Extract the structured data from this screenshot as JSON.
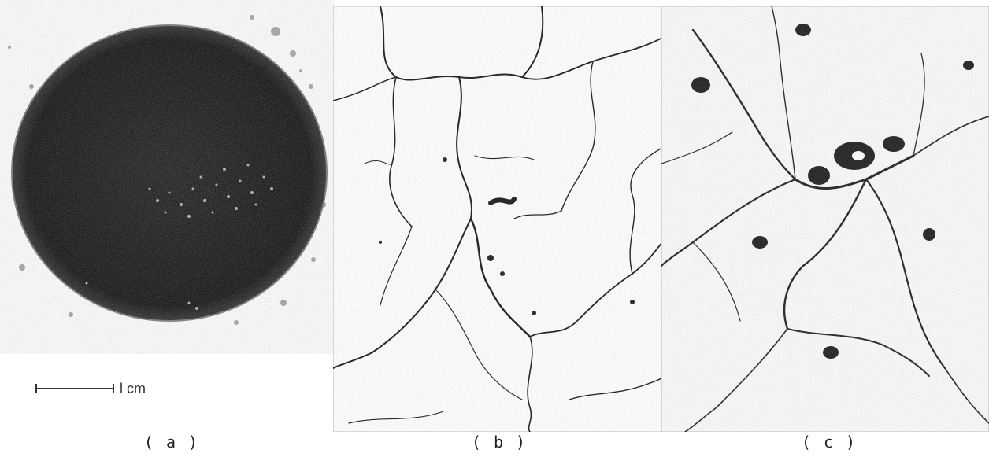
{
  "figure": {
    "scale_label": "l cm",
    "panels": [
      {
        "id": "a",
        "label": "( a )"
      },
      {
        "id": "b",
        "label": "( b )"
      },
      {
        "id": "c",
        "label": "( c )"
      }
    ]
  }
}
